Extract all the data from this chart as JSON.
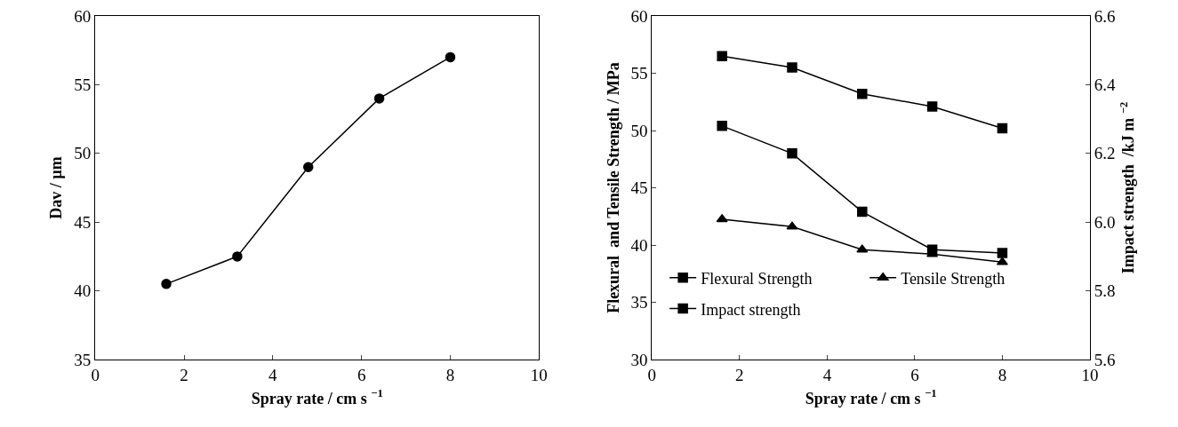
{
  "chart_data": [
    {
      "type": "line",
      "xlabel": "Spray rate / cm s $^{−1}$",
      "ylabel": "Dav / µm",
      "x": [
        1.6,
        3.2,
        4.8,
        6.4,
        8.0
      ],
      "xlim": [
        0,
        10
      ],
      "xticks": [
        0,
        2,
        4,
        6,
        8,
        10
      ],
      "ylim": [
        35,
        60
      ],
      "yticks": [
        35,
        40,
        45,
        50,
        55,
        60
      ],
      "marker": "circle",
      "grid": false,
      "legend": false,
      "series": [
        {
          "color": "#000000",
          "values": [
            40.5,
            42.5,
            49.0,
            54.0,
            57.0
          ]
        }
      ]
    },
    {
      "type": "line",
      "xlabel": "Spray rate / cm s $^{−1}$",
      "ylabel": "Flexural  and Tensile Strength / MPa",
      "y2label": "Impact strength  /kJ m $^{−2}$",
      "x": [
        1.6,
        3.2,
        4.8,
        6.4,
        8.0
      ],
      "xlim": [
        0,
        10
      ],
      "xticks": [
        0,
        2,
        4,
        6,
        8,
        10
      ],
      "ylim": [
        30,
        60
      ],
      "yticks": [
        30,
        35,
        40,
        45,
        50,
        55,
        60
      ],
      "y2lim": [
        5.6,
        6.6
      ],
      "y2ticks": [
        {
          "value": 5.6,
          "label": "5.6"
        },
        {
          "value": 5.8,
          "label": "5.8"
        },
        {
          "value": 6.0,
          "label": "6.0"
        },
        {
          "value": 6.2,
          "label": "6.2"
        },
        {
          "value": 6.4,
          "label": "6.4"
        },
        {
          "value": 6.6,
          "label": "6.6"
        }
      ],
      "grid": false,
      "legend": "bottom left",
      "series": [
        {
          "name": "Flexural Strength",
          "color": "#000000",
          "marker": "square",
          "values": [
            56.5,
            55.5,
            53.2,
            52.1,
            50.2
          ]
        },
        {
          "name": "Tensile Strength",
          "color": "#000000",
          "marker": "triangle",
          "values": [
            42.25,
            41.6,
            39.6,
            39.2,
            38.5
          ]
        },
        {
          "name": "Impact strength",
          "color": "#000000",
          "marker": "square",
          "axis": "y2",
          "values": [
            6.28,
            6.2,
            6.03,
            5.92,
            5.91
          ]
        }
      ]
    }
  ]
}
